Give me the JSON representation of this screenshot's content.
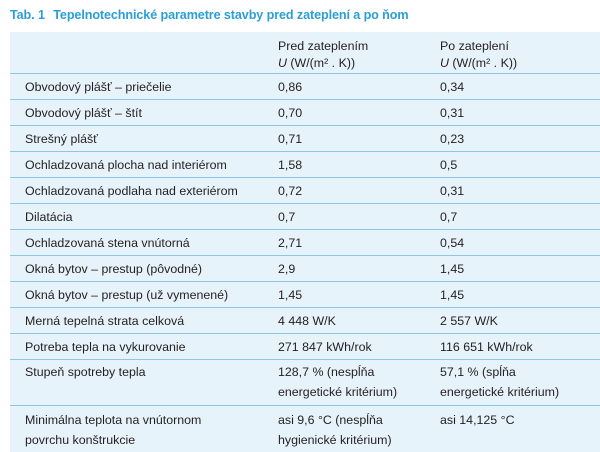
{
  "caption": {
    "label": "Tab. 1",
    "title": "Tepelnotechnické parametre stavby pred zateplení a po ňom"
  },
  "header": {
    "col2_line1": "Pred zateplením",
    "col2_unit_symbol": "U",
    "col2_unit": "(W/(m² . K))",
    "col3_line1": "Po zateplení",
    "col3_unit_symbol": "U",
    "col3_unit": "(W/(m² . K))"
  },
  "rows": [
    {
      "name": "Obvodový plášť – priečelie",
      "before": "0,86",
      "after": "0,34"
    },
    {
      "name": "Obvodový plášť – štít",
      "before": "0,70",
      "after": "0,31"
    },
    {
      "name": "Strešný plášť",
      "before": "0,71",
      "after": "0,23"
    },
    {
      "name": "Ochladzovaná plocha nad interiérom",
      "before": "1,58",
      "after": "0,5"
    },
    {
      "name": "Ochladzovaná podlaha nad exteriérom",
      "before": "0,72",
      "after": "0,31"
    },
    {
      "name": "Dilatácia",
      "before": "0,7",
      "after": "0,7"
    },
    {
      "name": "Ochladzovaná stena vnútorná",
      "before": "2,71",
      "after": "0,54"
    },
    {
      "name": "Okná bytov – prestup (pôvodné)",
      "before": "2,9",
      "after": "1,45"
    },
    {
      "name": "Okná bytov – prestup (už vymenené)",
      "before": "1,45",
      "after": "1,45"
    },
    {
      "name": "Merná tepelná strata celková",
      "before": "4 448 W/K",
      "after": "2 557 W/K"
    },
    {
      "name": "Potreba tepla na vykurovanie",
      "before": "271 847 kWh/rok",
      "after": "116 651 kWh/rok"
    },
    {
      "name": "Stupeň spotreby tepla",
      "before": "128,7 % (nespĺňa",
      "before_2": "energetické kritérium)",
      "after": "57,1 % (spĺňa",
      "after_2": "energetické kritérium)"
    },
    {
      "name": "Minimálna teplota na vnútornom",
      "name_2": "povrchu konštrukcie",
      "before": "asi 9,6 °C (nespĺňa",
      "before_2": "hygienické kritérium)",
      "after": "asi 14,125 °C"
    }
  ]
}
